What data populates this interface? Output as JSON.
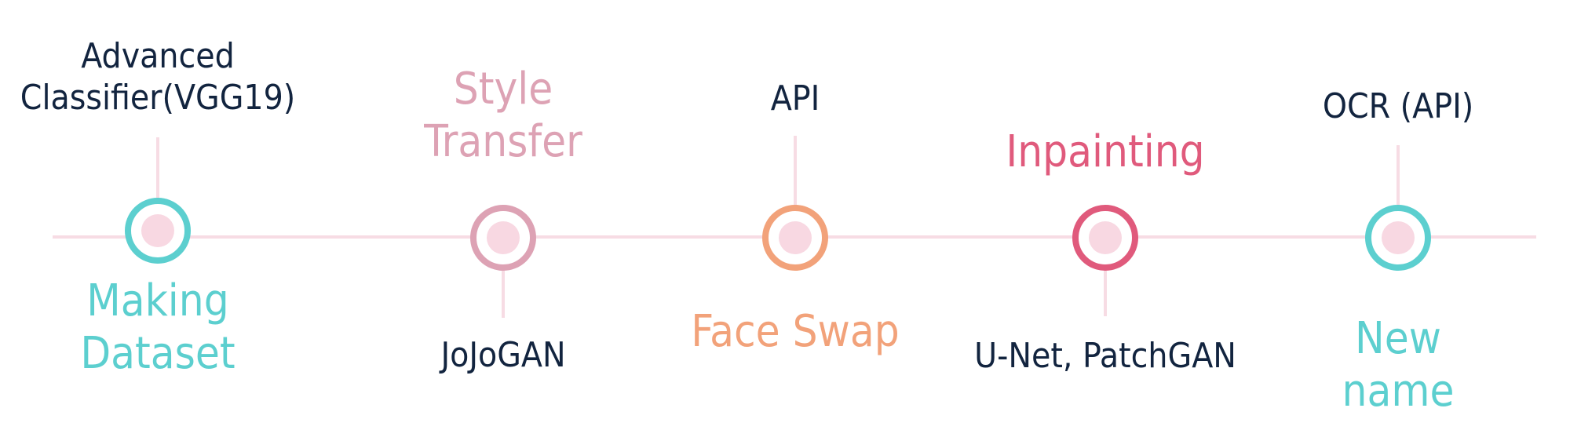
{
  "colors": {
    "teal": "#5ccfcf",
    "rose": "#dda2b4",
    "orange": "#f2a27a",
    "crimson": "#e05a7c",
    "navy": "#12243f",
    "line": "#f7dce4",
    "dot": "#f8d8e2"
  },
  "milestones": [
    {
      "top_label": "Advanced\nClassifier(VGG19)",
      "bottom_label": "Making\nDataset",
      "ring_color": "#5ccfcf",
      "top_color": "#12243f",
      "bottom_color": "#5ccfcf"
    },
    {
      "top_label": "Style\nTransfer",
      "bottom_label": "JoJoGAN",
      "ring_color": "#dda2b4",
      "top_color": "#dda2b4",
      "bottom_color": "#12243f"
    },
    {
      "top_label": "API",
      "bottom_label": "Face Swap",
      "ring_color": "#f2a27a",
      "top_color": "#12243f",
      "bottom_color": "#f2a27a"
    },
    {
      "top_label": "Inpainting",
      "bottom_label": "U-Net, PatchGAN",
      "ring_color": "#e05a7c",
      "top_color": "#e05a7c",
      "bottom_color": "#12243f"
    },
    {
      "top_label": "OCR (API)",
      "bottom_label": "New name",
      "ring_color": "#5ccfcf",
      "top_color": "#12243f",
      "bottom_color": "#5ccfcf"
    }
  ]
}
